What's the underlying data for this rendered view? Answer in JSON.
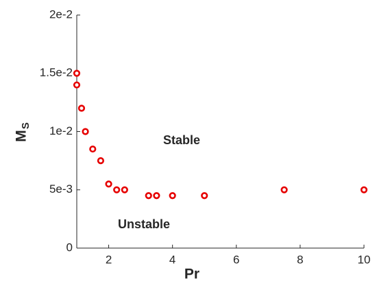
{
  "chart_data": {
    "type": "scatter",
    "xlabel": "Pr",
    "ylabel": {
      "text": "M",
      "subscript": "S"
    },
    "annotations": [
      "Stable",
      "Unstable"
    ],
    "color": "#e60000",
    "x": [
      1,
      1,
      1.15,
      1.27,
      1.5,
      1.75,
      2,
      2.25,
      2.5,
      3.25,
      3.5,
      4,
      5,
      7.5,
      10
    ],
    "y": [
      0.015,
      0.014,
      0.012,
      0.01,
      0.0085,
      0.0075,
      0.0055,
      0.005,
      0.005,
      0.0045,
      0.0045,
      0.0045,
      0.0045,
      0.005,
      0.005
    ],
    "xlim": [
      1,
      10
    ],
    "xticks": [
      2,
      4,
      6,
      8,
      10
    ],
    "ylim": [
      0,
      0.02
    ],
    "yticks": [
      0,
      {
        "value": 0.005,
        "label": "5e-3"
      },
      {
        "value": 0.01,
        "label": "1e-2"
      },
      {
        "value": 0.015,
        "label": "1.5e-2"
      },
      {
        "value": 0.02,
        "label": "2e-2"
      }
    ]
  }
}
